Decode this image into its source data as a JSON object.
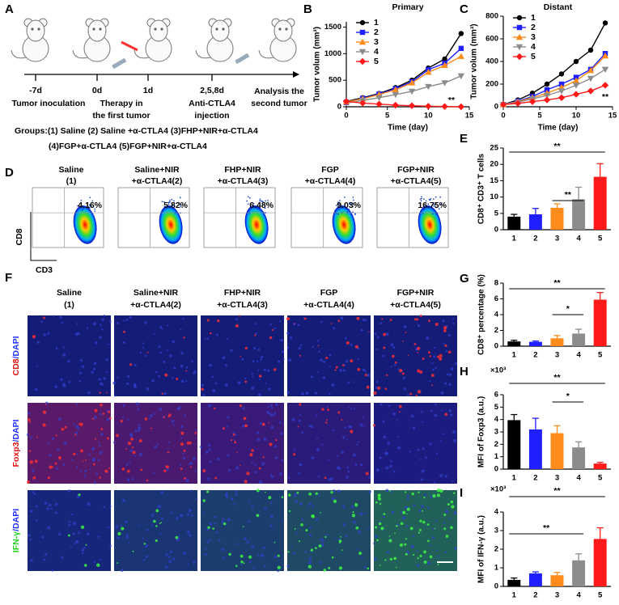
{
  "panel_labels": [
    "A",
    "B",
    "C",
    "D",
    "E",
    "F",
    "G",
    "H",
    "I"
  ],
  "timeline": {
    "days": [
      "-7d",
      "0d",
      "1d",
      "2,5,8d"
    ],
    "events": [
      [
        "Tumor inoculation"
      ],
      [
        "Therapy in",
        "the first tumor"
      ],
      [
        "Anti-CTLA4",
        "injection"
      ],
      [
        "Analysis the",
        "second tumor"
      ]
    ],
    "groups": [
      "Groups:(1) Saline  (2) Saline +α-CTLA4  (3)FHP+NIR+α-CTLA4",
      "(4)FGP+α-CTLA4   (5)FGP+NIR+α-CTLA4"
    ]
  },
  "flow": {
    "titles": [
      [
        "Saline",
        "(1)"
      ],
      [
        "Saline+NIR",
        "+α-CTLA4(2)"
      ],
      [
        "FHP+NIR",
        "+α-CTLA4(3)"
      ],
      [
        "FGP",
        "+α-CTLA4(4)"
      ],
      [
        "FGP+NIR",
        "+α-CTLA4(5)"
      ]
    ],
    "percentages": [
      "4.16%",
      "5.82%",
      "6.48%",
      "9.03%",
      "16.75%"
    ],
    "y_label": "CD8",
    "x_label": "CD3"
  },
  "images": {
    "titles": [
      [
        "Saline",
        "(1)"
      ],
      [
        "Saline+NIR",
        "+α-CTLA4(2)"
      ],
      [
        "FHP+NIR",
        "+α-CTLA4(3)"
      ],
      [
        "FGP",
        "+α-CTLA4(4)"
      ],
      [
        "FGP+NIR",
        "+α-CTLA4(5)"
      ]
    ],
    "rows": [
      [
        "CD8",
        "/DAPI"
      ],
      [
        "Foxp3",
        "/DAPI"
      ],
      [
        "IFN-γ",
        "/DAPI"
      ]
    ]
  },
  "chart_data": [
    {
      "type": "line",
      "title": "Primary",
      "xlabel": "Time (day)",
      "ylabel": "Tumor volum (mm³)",
      "x": [
        0,
        2,
        4,
        6,
        8,
        10,
        12,
        14
      ],
      "series": [
        {
          "name": "1",
          "color": "#000000",
          "values": [
            100,
            170,
            250,
            360,
            500,
            730,
            900,
            1380
          ]
        },
        {
          "name": "2",
          "color": "#1f1fff",
          "values": [
            80,
            160,
            240,
            340,
            470,
            700,
            820,
            1100
          ]
        },
        {
          "name": "3",
          "color": "#ff8c1a",
          "values": [
            90,
            150,
            230,
            320,
            450,
            650,
            780,
            950
          ]
        },
        {
          "name": "4",
          "color": "#8c8c8c",
          "values": [
            70,
            120,
            170,
            230,
            290,
            380,
            450,
            580
          ]
        },
        {
          "name": "5",
          "color": "#ff1a1a",
          "values": [
            100,
            70,
            50,
            30,
            20,
            10,
            5,
            0
          ]
        }
      ],
      "xlim": [
        0,
        15
      ],
      "ylim": [
        0,
        1600
      ],
      "xticks": [
        0,
        5,
        10,
        15
      ],
      "yticks": [
        0,
        500,
        1000,
        1500
      ],
      "annotations": [
        "**"
      ]
    },
    {
      "type": "line",
      "title": "Distant",
      "xlabel": "Time (day)",
      "ylabel": "Tumor volum (mm³)",
      "x": [
        0,
        2,
        4,
        6,
        8,
        10,
        12,
        14
      ],
      "series": [
        {
          "name": "1",
          "color": "#000000",
          "values": [
            20,
            60,
            120,
            200,
            290,
            400,
            500,
            740
          ]
        },
        {
          "name": "2",
          "color": "#1f1fff",
          "values": [
            20,
            50,
            90,
            150,
            200,
            260,
            330,
            470
          ]
        },
        {
          "name": "3",
          "color": "#ff8c1a",
          "values": [
            20,
            45,
            80,
            120,
            170,
            230,
            320,
            450
          ]
        },
        {
          "name": "4",
          "color": "#8c8c8c",
          "values": [
            20,
            40,
            70,
            100,
            140,
            190,
            250,
            330
          ]
        },
        {
          "name": "5",
          "color": "#ff1a1a",
          "values": [
            20,
            30,
            45,
            60,
            80,
            110,
            140,
            190
          ]
        }
      ],
      "xlim": [
        0,
        15
      ],
      "ylim": [
        0,
        800
      ],
      "xticks": [
        0,
        5,
        10,
        15
      ],
      "yticks": [
        0,
        200,
        400,
        600,
        800
      ],
      "annotations": [
        "**"
      ]
    },
    {
      "type": "bar",
      "ylabel": "CD8⁺ CD3⁺ T cells",
      "categories": [
        "1",
        "2",
        "3",
        "4",
        "5"
      ],
      "values": [
        4,
        4.7,
        6.7,
        9.3,
        16.2
      ],
      "errors": [
        0.7,
        1.8,
        1.2,
        3.7,
        4
      ],
      "colors": [
        "#000000",
        "#1f1fff",
        "#ff8c1a",
        "#8c8c8c",
        "#ff1a1a"
      ],
      "ylim": [
        0,
        25
      ],
      "yticks": [
        0,
        5,
        10,
        15,
        20,
        25
      ],
      "annotations": [
        "**",
        "**"
      ]
    },
    {
      "type": "bar",
      "ylabel": "CD8⁺ percentage (%)",
      "categories": [
        "1",
        "2",
        "3",
        "4",
        "5"
      ],
      "values": [
        0.6,
        0.55,
        1.0,
        1.6,
        5.9
      ],
      "errors": [
        0.15,
        0.1,
        0.35,
        0.55,
        0.9
      ],
      "colors": [
        "#000000",
        "#1f1fff",
        "#ff8c1a",
        "#8c8c8c",
        "#ff1a1a"
      ],
      "ylim": [
        0,
        8
      ],
      "yticks": [
        0,
        2,
        4,
        6,
        8
      ],
      "annotations": [
        "**",
        "*"
      ]
    },
    {
      "type": "bar",
      "ylabel": "MFI of Foxp3 (a.u.)",
      "multiplier": "×10³",
      "categories": [
        "1",
        "2",
        "3",
        "4",
        "5"
      ],
      "values": [
        3.95,
        3.2,
        2.9,
        1.75,
        0.45
      ],
      "errors": [
        0.45,
        0.9,
        0.6,
        0.45,
        0.1
      ],
      "colors": [
        "#000000",
        "#1f1fff",
        "#ff8c1a",
        "#8c8c8c",
        "#ff1a1a"
      ],
      "ylim": [
        0,
        6
      ],
      "yticks": [
        0,
        1,
        2,
        3,
        4,
        5,
        6
      ],
      "annotations": [
        "**",
        "*"
      ]
    },
    {
      "type": "bar",
      "ylabel": "MFI of IFN-γ (a.u.)",
      "multiplier": "×10³",
      "categories": [
        "1",
        "2",
        "3",
        "4",
        "5"
      ],
      "values": [
        0.35,
        0.7,
        0.6,
        1.4,
        2.55
      ],
      "errors": [
        0.1,
        0.08,
        0.15,
        0.35,
        0.6
      ],
      "colors": [
        "#000000",
        "#1f1fff",
        "#ff8c1a",
        "#8c8c8c",
        "#ff1a1a"
      ],
      "ylim": [
        0,
        4
      ],
      "yticks": [
        0,
        1,
        2,
        3,
        4
      ],
      "annotations": [
        "**",
        "**"
      ]
    }
  ]
}
